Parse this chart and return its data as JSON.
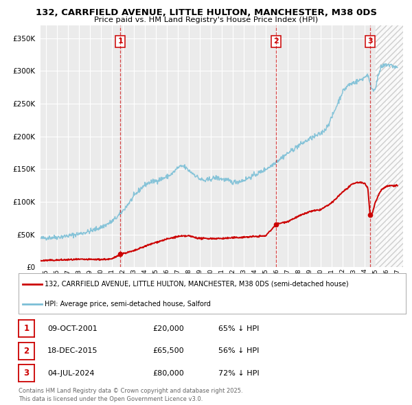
{
  "title": "132, CARRFIELD AVENUE, LITTLE HULTON, MANCHESTER, M38 0DS",
  "subtitle": "Price paid vs. HM Land Registry's House Price Index (HPI)",
  "hpi_color": "#7bbfd6",
  "price_color": "#cc0000",
  "sale_dates_num": [
    2001.77,
    2015.96,
    2024.51
  ],
  "sale_prices": [
    20000,
    65500,
    80000
  ],
  "sale_labels": [
    "1",
    "2",
    "3"
  ],
  "legend_line1": "132, CARRFIELD AVENUE, LITTLE HULTON, MANCHESTER, M38 0DS (semi-detached house)",
  "legend_line2": "HPI: Average price, semi-detached house, Salford",
  "table_rows": [
    [
      "1",
      "09-OCT-2001",
      "£20,000",
      "65% ↓ HPI"
    ],
    [
      "2",
      "18-DEC-2015",
      "£65,500",
      "56% ↓ HPI"
    ],
    [
      "3",
      "04-JUL-2024",
      "£80,000",
      "72% ↓ HPI"
    ]
  ],
  "footnote": "Contains HM Land Registry data © Crown copyright and database right 2025.\nThis data is licensed under the Open Government Licence v3.0.",
  "ylim": [
    0,
    370000
  ],
  "yticks": [
    0,
    50000,
    100000,
    150000,
    200000,
    250000,
    300000,
    350000
  ],
  "xlim_start": 1994.5,
  "xlim_end": 2027.5,
  "background_color": "#ffffff",
  "plot_bg_color": "#ebebeb"
}
